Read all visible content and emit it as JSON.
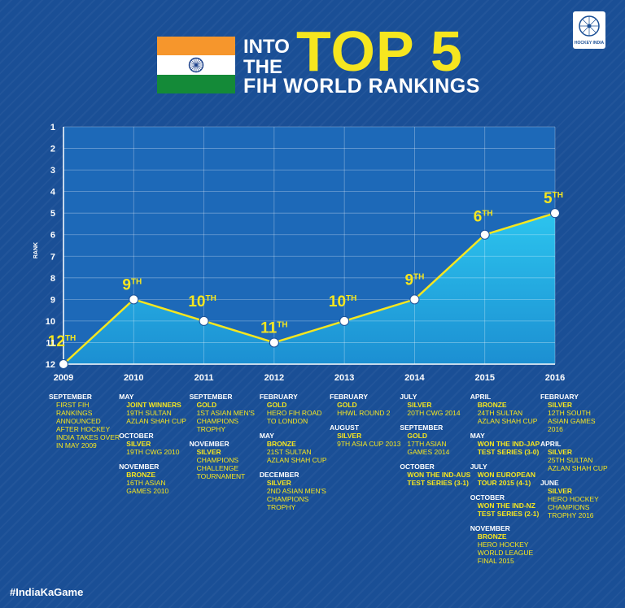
{
  "header": {
    "title_into": "INTO",
    "title_the": "THE",
    "title_top5": "TOP 5",
    "title_sub": "FIH WORLD RANKINGS",
    "logo_text": "HOCKEY INDIA"
  },
  "colors": {
    "saffron": "#f6962c",
    "green": "#148a38",
    "chakra": "#1a3f8a",
    "accent": "#f6e61f",
    "line": "#f6e61f",
    "area": "#1bb0e4"
  },
  "chart_data": {
    "type": "line",
    "ylabel": "RANK",
    "ylim": [
      1,
      12
    ],
    "y_reversed": true,
    "yticks": [
      "1",
      "2",
      "3",
      "4",
      "5",
      "6",
      "7",
      "8",
      "9",
      "10",
      "11",
      "12"
    ],
    "categories": [
      "2009",
      "2010",
      "2011",
      "2012",
      "2013",
      "2014",
      "2015",
      "2016"
    ],
    "values": [
      12,
      9,
      10,
      11,
      10,
      9,
      6,
      5
    ],
    "point_labels": [
      "12TH",
      "9TH",
      "10TH",
      "11TH",
      "10TH",
      "9TH",
      "6TH",
      "5TH"
    ],
    "grid": true
  },
  "events": [
    {
      "items": [
        {
          "month": "SEPTEMBER",
          "desc": "FIRST FIH RANKINGS ANNOUNCED AFTER HOCKEY INDIA TAKES OVER IN MAY 2009"
        }
      ]
    },
    {
      "items": [
        {
          "month": "MAY",
          "result": "JOINT WINNERS",
          "desc": "19TH SULTAN AZLAN SHAH CUP"
        },
        {
          "month": "OCTOBER",
          "result": "SILVER",
          "desc": "19TH CWG 2010"
        },
        {
          "month": "NOVEMBER",
          "result": "BRONZE",
          "desc": "16TH ASIAN GAMES 2010"
        }
      ]
    },
    {
      "items": [
        {
          "month": "SEPTEMBER",
          "result": "GOLD",
          "desc": "1ST ASIAN MEN'S CHAMPIONS TROPHY"
        },
        {
          "month": "NOVEMBER",
          "result": "SILVER",
          "desc": "CHAMPIONS CHALLENGE TOURNAMENT"
        }
      ]
    },
    {
      "items": [
        {
          "month": "FEBRUARY",
          "result": "GOLD",
          "desc": "HERO FIH ROAD TO LONDON"
        },
        {
          "month": "MAY",
          "result": "BRONZE",
          "desc": "21ST SULTAN AZLAN SHAH CUP"
        },
        {
          "month": "DECEMBER",
          "result": "SILVER",
          "desc": "2ND ASIAN MEN'S CHAMPIONS TROPHY"
        }
      ]
    },
    {
      "items": [
        {
          "month": "FEBRUARY",
          "result": "GOLD",
          "desc": "HHWL ROUND 2"
        },
        {
          "month": "AUGUST",
          "result": "SILVER",
          "desc": "9TH ASIA CUP 2013"
        }
      ]
    },
    {
      "items": [
        {
          "month": "JULY",
          "result": "SILVER",
          "desc": "20TH CWG 2014"
        },
        {
          "month": "SEPTEMBER",
          "result": "GOLD",
          "desc": "17TH ASIAN GAMES 2014"
        },
        {
          "month": "OCTOBER",
          "result": "WON THE IND-AUS TEST SERIES (3-1)",
          "desc": ""
        }
      ]
    },
    {
      "items": [
        {
          "month": "APRIL",
          "result": "BRONZE",
          "desc": "24TH SULTAN AZLAN SHAH CUP"
        },
        {
          "month": "MAY",
          "result": "WON THE IND-JAP TEST SERIES (3-0)",
          "desc": ""
        },
        {
          "month": "JULY",
          "result": "WON EUROPEAN TOUR 2015 (4-1)",
          "desc": ""
        },
        {
          "month": "OCTOBER",
          "result": "WON THE IND-NZ TEST SERIES (2-1)",
          "desc": ""
        },
        {
          "month": "NOVEMBER",
          "result": "BRONZE",
          "desc": "HERO HOCKEY WORLD LEAGUE FINAL 2015"
        }
      ]
    },
    {
      "items": [
        {
          "month": "FEBRUARY",
          "result": "SILVER",
          "desc": "12TH SOUTH ASIAN GAMES 2016"
        },
        {
          "month": "APRIL",
          "result": "SILVER",
          "desc": "25TH SULTAN AZLAN SHAH CUP"
        },
        {
          "month": "JUNE",
          "result": "SILVER",
          "desc": "HERO HOCKEY CHAMPIONS TROPHY 2016"
        }
      ]
    }
  ],
  "footer": {
    "hashtag": "#IndiaKaGame"
  }
}
